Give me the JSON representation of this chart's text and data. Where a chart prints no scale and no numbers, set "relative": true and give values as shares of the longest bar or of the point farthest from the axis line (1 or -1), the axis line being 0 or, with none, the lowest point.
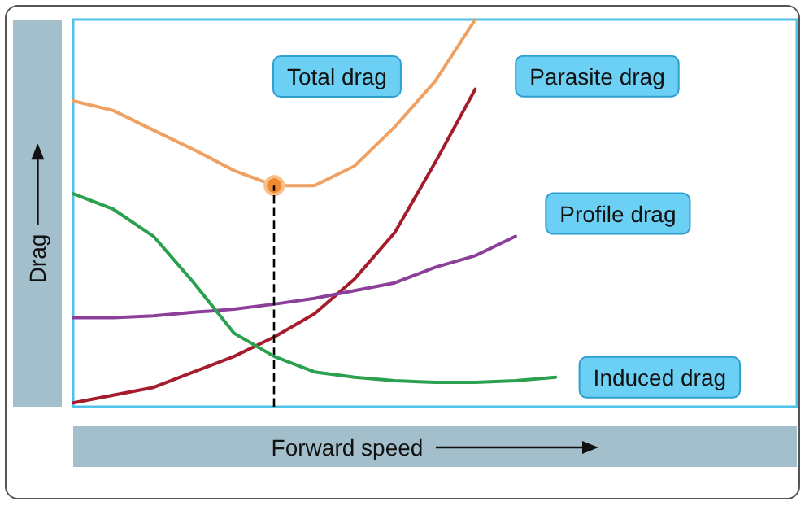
{
  "chart_data": {
    "type": "line",
    "relative": true,
    "xlabel": "Forward speed",
    "ylabel": "Drag",
    "categories": [
      null,
      null,
      null,
      null,
      null,
      null,
      null,
      null,
      null,
      null,
      null,
      null,
      null,
      null,
      null,
      null,
      null,
      null,
      null
    ],
    "series": [
      {
        "name": "Total drag",
        "color": "#f0a060",
        "values": [
          0.79,
          0.765,
          0.714,
          0.664,
          0.61,
          0.571,
          0.571,
          0.622,
          0.723,
          0.84,
          1,
          null,
          null,
          null,
          null,
          null,
          null,
          null,
          null
        ]
      },
      {
        "name": "Parasite drag",
        "color": "#a51d2d",
        "values": [
          0.01,
          0.03,
          0.05,
          0.09,
          0.13,
          0.18,
          0.24,
          0.33,
          0.45,
          0.63,
          0.82,
          null,
          null,
          null,
          null,
          null,
          null,
          null,
          null
        ]
      },
      {
        "name": "Profile drag",
        "color": "#8c3f98",
        "values": [
          0.23,
          0.23,
          0.235,
          0.244,
          0.252,
          0.265,
          0.28,
          0.3,
          0.32,
          0.36,
          0.39,
          0.44,
          null,
          null,
          null,
          null,
          null,
          null,
          null
        ]
      },
      {
        "name": "Induced drag",
        "color": "#2ba04e",
        "values": [
          0.55,
          0.51,
          0.44,
          0.32,
          0.19,
          0.13,
          0.09,
          0.076,
          0.067,
          0.063,
          0.063,
          0.067,
          0.076,
          null,
          null,
          null,
          null,
          null,
          null
        ]
      }
    ]
  }
}
